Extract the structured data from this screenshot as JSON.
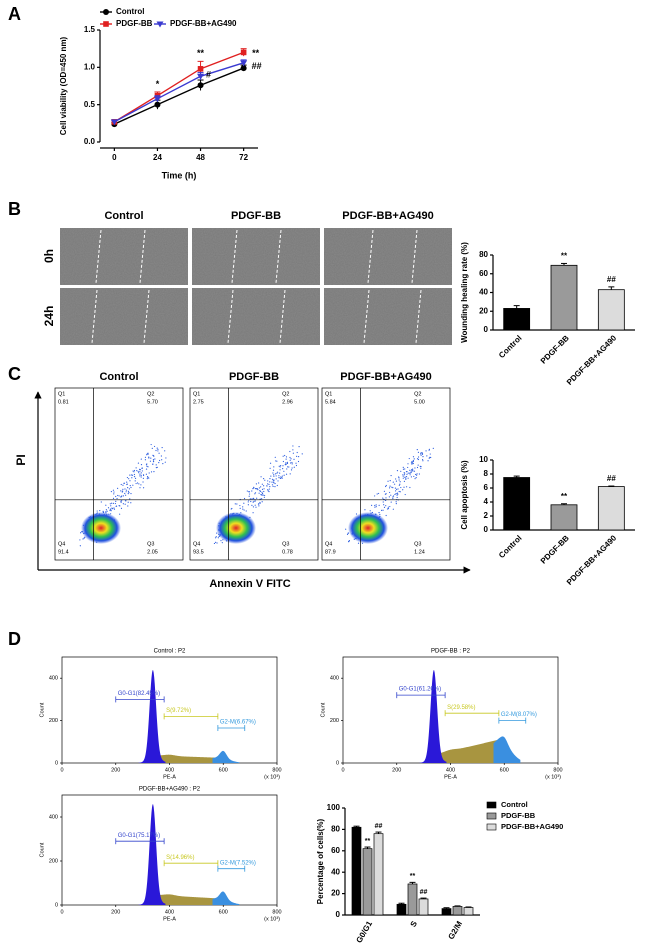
{
  "panel_labels": [
    "A",
    "B",
    "C",
    "D"
  ],
  "chart_data": [
    {
      "type": "line",
      "x": [
        0,
        24,
        48,
        72
      ],
      "xlim": [
        -8,
        80
      ],
      "xticks": [
        0,
        24,
        48,
        72
      ],
      "xlabel": "Time (h)",
      "ylabel": "Cell viability (OD=450 nm)",
      "ylim": [
        0,
        1.5
      ],
      "yticks": [
        {
          "value": 0,
          "label": "0.0"
        },
        {
          "value": 0.5,
          "label": "0.5"
        },
        {
          "value": 1,
          "label": "1.0"
        },
        {
          "value": 1.5,
          "label": "1.5"
        }
      ],
      "series": [
        {
          "name": "Control",
          "color": "#000000",
          "values": [
            0.24,
            0.5,
            0.76,
            0.99
          ],
          "errors": [
            0.02,
            0.06,
            0.07,
            0.04
          ]
        },
        {
          "name": "PDGF-BB",
          "color": "#e02020",
          "values": [
            0.27,
            0.62,
            0.98,
            1.2
          ],
          "errors": [
            0.02,
            0.05,
            0.1,
            0.05
          ]
        },
        {
          "name": "PDGF-BB+AG490",
          "color": "#3a3ad0",
          "values": [
            0.27,
            0.58,
            0.88,
            1.06
          ],
          "errors": [
            0.02,
            0.04,
            0.05,
            0.04
          ]
        }
      ],
      "annotations": [
        "*",
        "**",
        "**",
        "#",
        "##"
      ]
    },
    {
      "type": "bar",
      "categories": [
        "Control",
        "PDGF-BB",
        "PDGF-BB+AG490"
      ],
      "values": [
        23,
        69,
        43
      ],
      "errors": [
        3,
        2,
        3
      ],
      "colors": [
        "#000000",
        "#9a9a9a",
        "#dcdcdc"
      ],
      "ylabel": "Wounding healing rate (%)",
      "ylim": [
        0,
        80
      ],
      "yticks": [
        0,
        20,
        40,
        60,
        80
      ],
      "annotations": [
        "**",
        "##"
      ]
    },
    {
      "type": "bar",
      "categories": [
        "Control",
        "PDGF-BB",
        "PDGF-BB+AG490"
      ],
      "values": [
        7.5,
        3.6,
        6.2
      ],
      "errors": [
        0.2,
        0.15,
        0.08
      ],
      "colors": [
        "#000000",
        "#9a9a9a",
        "#dcdcdc"
      ],
      "ylabel": "Cell apoptosis (%)",
      "ylim": [
        0,
        10
      ],
      "yticks": [
        0,
        2,
        4,
        6,
        8,
        10
      ],
      "annotations": [
        "**",
        "##"
      ]
    },
    {
      "type": "grouped_bar",
      "categories": [
        "G0/G1",
        "S",
        "G2/M"
      ],
      "ylabel": "Percentage of cells(%)",
      "ylim": [
        0,
        100
      ],
      "yticks": [
        0,
        20,
        40,
        60,
        80,
        100
      ],
      "series": [
        {
          "name": "Control",
          "color": "#000000",
          "values": [
            82,
            10,
            6
          ],
          "errors": [
            1,
            1,
            0.8
          ]
        },
        {
          "name": "PDGF-BB",
          "color": "#9a9a9a",
          "values": [
            62,
            29,
            8
          ],
          "errors": [
            1.5,
            1.5,
            0.5
          ]
        },
        {
          "name": "PDGF-BB+AG490",
          "color": "#dcdcdc",
          "values": [
            76,
            15,
            7
          ],
          "errors": [
            1.5,
            0.8,
            0.5
          ]
        }
      ],
      "annotations": [
        "**",
        "##",
        "**",
        "##"
      ]
    }
  ],
  "micrographs": {
    "columns": [
      "Control",
      "PDGF-BB",
      "PDGF-BB+AG490"
    ],
    "rows": [
      "0h",
      "24h"
    ]
  },
  "flow": {
    "xlabel": "Annexin V FITC",
    "ylabel": "PI",
    "plots": [
      {
        "title": "Control",
        "quadrants": [
          {
            "name": "Q1",
            "value": "0.81"
          },
          {
            "name": "Q2",
            "value": "5.70"
          },
          {
            "name": "Q3",
            "value": "2.05"
          },
          {
            "name": "Q4",
            "value": "91.4"
          }
        ]
      },
      {
        "title": "PDGF-BB",
        "quadrants": [
          {
            "name": "Q1",
            "value": "2.75"
          },
          {
            "name": "Q2",
            "value": "2.96"
          },
          {
            "name": "Q3",
            "value": "0.78"
          },
          {
            "name": "Q4",
            "value": "93.5"
          }
        ]
      },
      {
        "title": "PDGF-BB+AG490",
        "quadrants": [
          {
            "name": "Q1",
            "value": "5.84"
          },
          {
            "name": "Q2",
            "value": "5.00"
          },
          {
            "name": "Q3",
            "value": "1.24"
          },
          {
            "name": "Q4",
            "value": "87.9"
          }
        ]
      }
    ]
  },
  "cell_cycle": {
    "xlabel": "PE-A",
    "ylabel": "Count",
    "unit": "(x 10³)",
    "xlim": [
      0,
      800
    ],
    "ylim": [
      0,
      500
    ],
    "xticks": [
      0,
      200,
      400,
      600,
      800
    ],
    "yticks": [
      0,
      200,
      400
    ],
    "plots": [
      {
        "title": "Control : P2",
        "gates": [
          "G0-G1(82.45%)",
          "S(9.72%)",
          "G2-M(6.67%)"
        ]
      },
      {
        "title": "PDGF-BB : P2",
        "gates": [
          "G0-G1(61.26%)",
          "S(29.58%)",
          "G2-M(8.07%)"
        ]
      },
      {
        "title": "PDGF-BB+AG490 : P2",
        "gates": [
          "G0-G1(75.17%)",
          "S(14.96%)",
          "G2-M(7.52%)"
        ]
      }
    ]
  }
}
